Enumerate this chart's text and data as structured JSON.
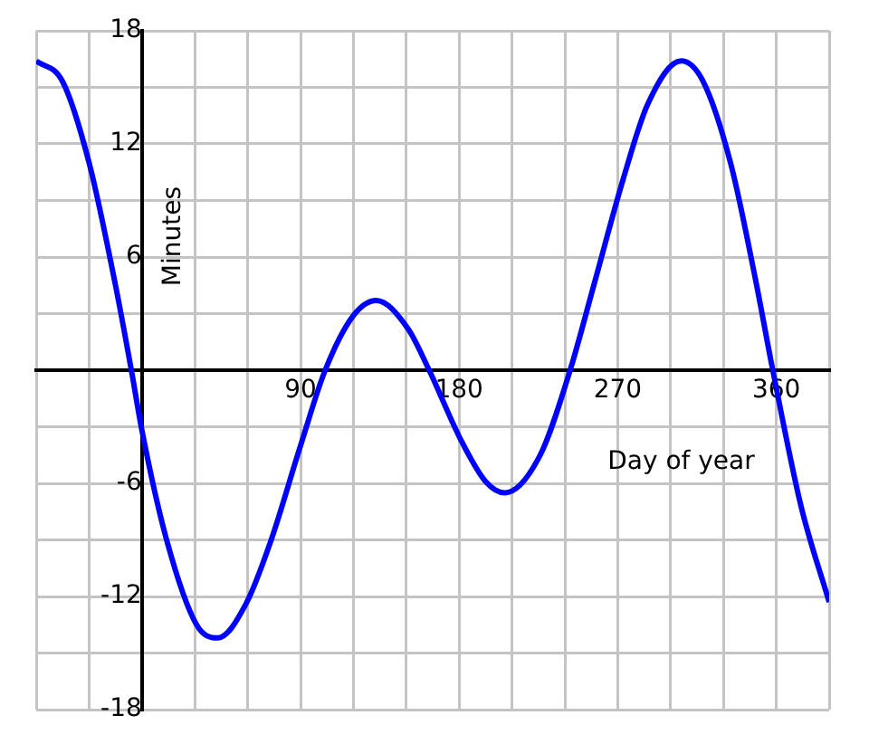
{
  "chart_data": {
    "type": "line",
    "xlabel": "Day of year",
    "ylabel": "Minutes",
    "x": [
      -60,
      -45,
      -30,
      -15,
      -6,
      0,
      14,
      31,
      43,
      59,
      73,
      90,
      104,
      120,
      133,
      151,
      163,
      181,
      195,
      206,
      226,
      243,
      257,
      273,
      287,
      306,
      318,
      334,
      348,
      358,
      374,
      390
    ],
    "series": [
      {
        "color": "#0000ff",
        "values": [
          16.4,
          15.3,
          11.0,
          4.5,
          0.0,
          -3.2,
          -9.0,
          -13.5,
          -14.2,
          -12.4,
          -9.1,
          -4.0,
          0.0,
          2.9,
          3.7,
          2.2,
          0.0,
          -3.7,
          -5.9,
          -6.5,
          -4.5,
          0.0,
          4.7,
          10.1,
          14.1,
          16.4,
          15.4,
          11.0,
          4.9,
          0.0,
          -7.2,
          -12.3
        ]
      }
    ],
    "xlim": [
      -60,
      390
    ],
    "xticks": [
      {
        "value": -60,
        "label": null
      },
      {
        "value": -30,
        "label": null
      },
      {
        "value": 0,
        "label": null
      },
      {
        "value": 30,
        "label": null
      },
      {
        "value": 60,
        "label": null
      },
      90,
      {
        "value": 120,
        "label": null
      },
      {
        "value": 150,
        "label": null
      },
      180,
      {
        "value": 210,
        "label": null
      },
      {
        "value": 240,
        "label": null
      },
      270,
      {
        "value": 300,
        "label": null
      },
      {
        "value": 330,
        "label": null
      },
      360,
      {
        "value": 390,
        "label": null
      }
    ],
    "ylim": [
      -18,
      18
    ],
    "yticks": [
      -18,
      {
        "value": -15,
        "label": null
      },
      -12,
      {
        "value": -9,
        "label": null
      },
      -6,
      {
        "value": -3,
        "label": null
      },
      {
        "value": 0,
        "label": null
      },
      {
        "value": 3,
        "label": null
      },
      6,
      {
        "value": 9,
        "label": null
      },
      12,
      {
        "value": 15,
        "label": null
      },
      18
    ],
    "grid": true,
    "legend": false,
    "marker": "none",
    "line_style": "solid"
  }
}
